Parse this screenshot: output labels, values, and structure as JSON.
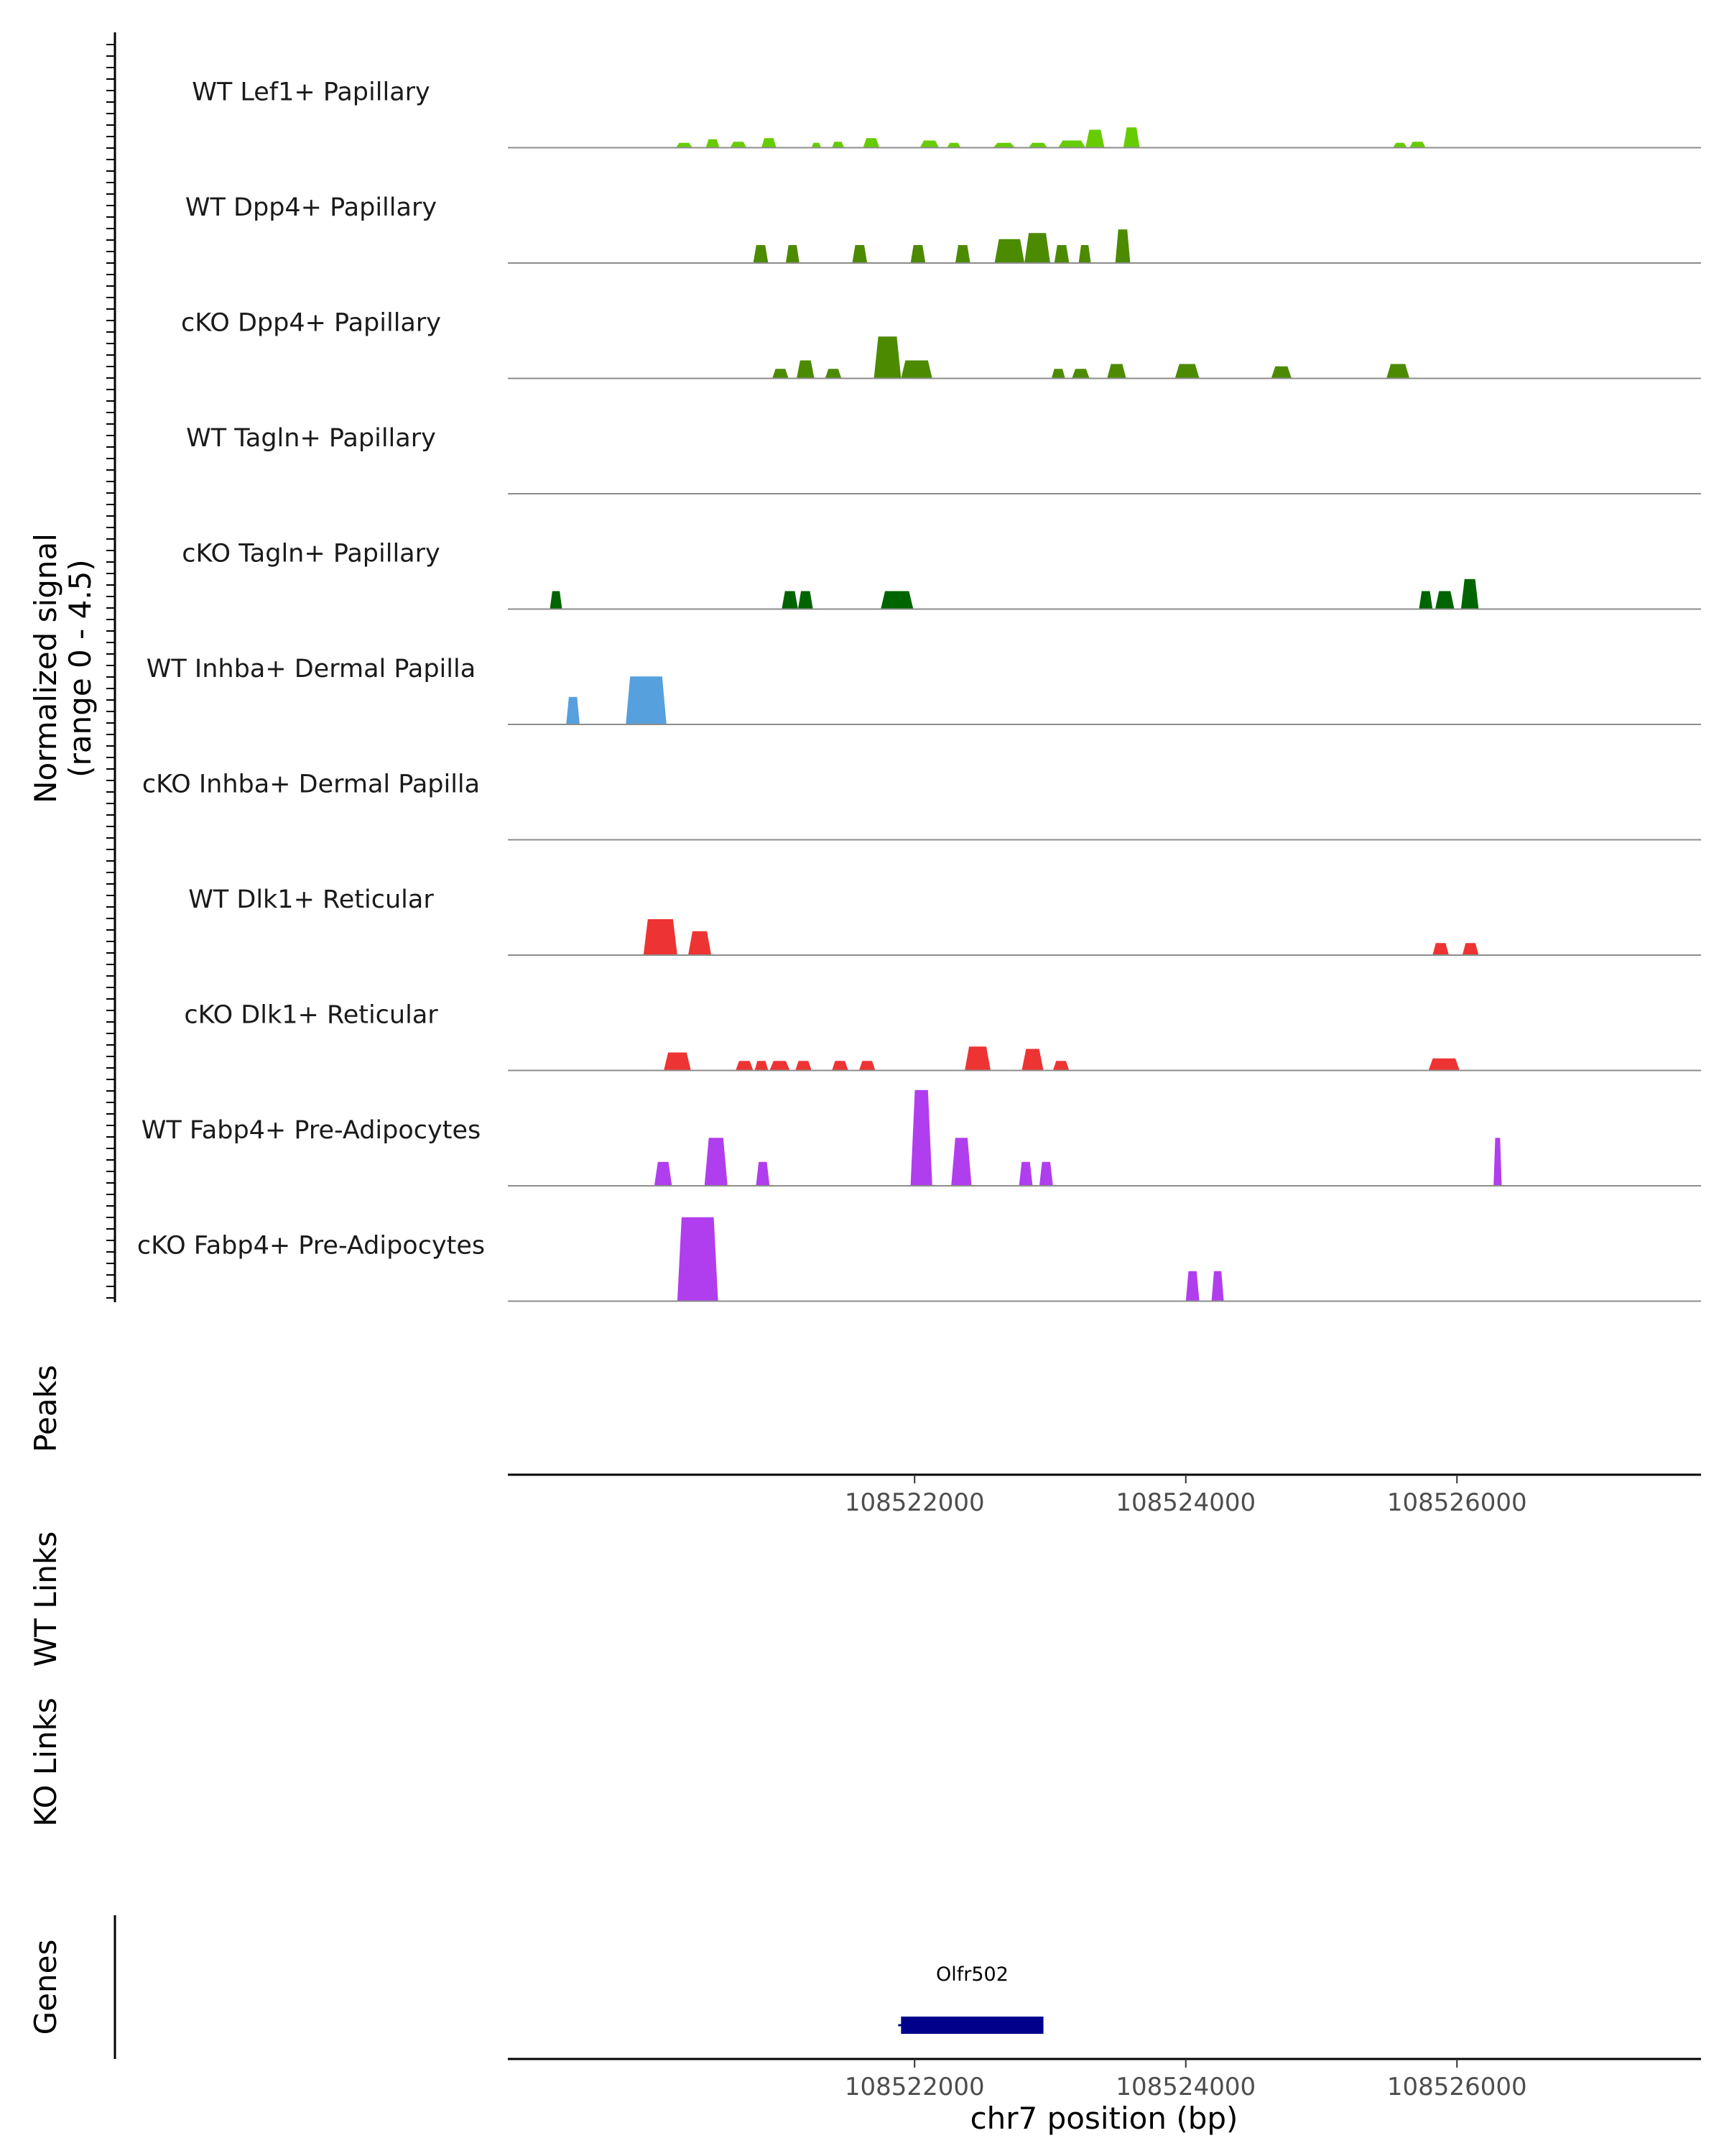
{
  "chart_data": {
    "type": "area",
    "title": "",
    "region": "chr7",
    "xlabel": "chr7 position (bp)",
    "xlim": [
      108519000,
      108527800
    ],
    "x_ticks": [
      108522000,
      108524000,
      108526000
    ],
    "x_tick_labels": [
      "108522000",
      "108524000",
      "108526000"
    ],
    "signal_panel": {
      "ylabel_line1": "Normalized signal",
      "ylabel_line2": "(range 0 - 4.5)",
      "ylim": [
        0,
        4.5
      ],
      "tracks": [
        {
          "label": "WT Lef1+ Papillary",
          "color": "#66CC00",
          "peaks": [
            [
              108520240,
              108520360,
              0.4
            ],
            [
              108520460,
              108520560,
              0.7
            ],
            [
              108520640,
              108520760,
              0.5
            ],
            [
              108520870,
              108520980,
              0.8
            ],
            [
              108521240,
              108521310,
              0.4
            ],
            [
              108521390,
              108521480,
              0.5
            ],
            [
              108521620,
              108521740,
              0.8
            ],
            [
              108522040,
              108522180,
              0.6
            ],
            [
              108522240,
              108522340,
              0.4
            ],
            [
              108522580,
              108522740,
              0.4
            ],
            [
              108522840,
              108522980,
              0.4
            ],
            [
              108523060,
              108523260,
              0.6
            ],
            [
              108523260,
              108523400,
              1.5
            ],
            [
              108523540,
              108523660,
              1.7
            ],
            [
              108525530,
              108525630,
              0.4
            ],
            [
              108525650,
              108525770,
              0.5
            ]
          ]
        },
        {
          "label": "WT Dpp4+ Papillary",
          "color": "#4C8B00",
          "peaks": [
            [
              108520810,
              108520920,
              1.5
            ],
            [
              108521050,
              108521150,
              1.5
            ],
            [
              108521540,
              108521650,
              1.5
            ],
            [
              108521970,
              108522080,
              1.5
            ],
            [
              108522300,
              108522410,
              1.5
            ],
            [
              108522590,
              108522810,
              2.0
            ],
            [
              108522810,
              108523000,
              2.5
            ],
            [
              108523030,
              108523140,
              1.5
            ],
            [
              108523210,
              108523300,
              1.5
            ],
            [
              108523480,
              108523590,
              2.8
            ]
          ]
        },
        {
          "label": "cKO Dpp4+ Papillary",
          "color": "#4C8B00",
          "peaks": [
            [
              108520950,
              108521070,
              0.8
            ],
            [
              108521130,
              108521260,
              1.5
            ],
            [
              108521340,
              108521460,
              0.8
            ],
            [
              108521700,
              108521900,
              3.5
            ],
            [
              108521900,
              108522130,
              1.5
            ],
            [
              108523010,
              108523110,
              0.8
            ],
            [
              108523160,
              108523290,
              0.8
            ],
            [
              108523420,
              108523560,
              1.2
            ],
            [
              108523920,
              108524100,
              1.2
            ],
            [
              108524630,
              108524780,
              1.0
            ],
            [
              108525480,
              108525650,
              1.2
            ]
          ]
        },
        {
          "label": "WT Tagln+ Papillary",
          "color": "#006400",
          "peaks": []
        },
        {
          "label": "cKO Tagln+ Papillary",
          "color": "#006400",
          "peaks": [
            [
              108519310,
              108519400,
              1.5
            ],
            [
              108521020,
              108521140,
              1.5
            ],
            [
              108521140,
              108521250,
              1.5
            ],
            [
              108521750,
              108521990,
              1.5
            ],
            [
              108525720,
              108525820,
              1.5
            ],
            [
              108525840,
              108525980,
              1.5
            ],
            [
              108526030,
              108526160,
              2.5
            ]
          ]
        },
        {
          "label": "WT Inhba+ Dermal Papilla",
          "color": "#56A0DE",
          "peaks": [
            [
              108519430,
              108519530,
              2.3
            ],
            [
              108519870,
              108520170,
              4.0
            ]
          ]
        },
        {
          "label": "cKO Inhba+ Dermal Papilla",
          "color": "#56A0DE",
          "peaks": []
        },
        {
          "label": "WT Dlk1+ Reticular",
          "color": "#EE3333",
          "peaks": [
            [
              108520000,
              108520250,
              3.0
            ],
            [
              108520330,
              108520500,
              2.0
            ],
            [
              108525820,
              108525940,
              1.0
            ],
            [
              108526040,
              108526160,
              1.0
            ]
          ]
        },
        {
          "label": "cKO Dlk1+ Reticular",
          "color": "#EE3333",
          "peaks": [
            [
              108520150,
              108520350,
              1.5
            ],
            [
              108520680,
              108520810,
              0.8
            ],
            [
              108520820,
              108520920,
              0.8
            ],
            [
              108520930,
              108521080,
              0.8
            ],
            [
              108521120,
              108521240,
              0.8
            ],
            [
              108521390,
              108521510,
              0.8
            ],
            [
              108521590,
              108521710,
              0.8
            ],
            [
              108522370,
              108522560,
              2.0
            ],
            [
              108522790,
              108522950,
              1.8
            ],
            [
              108523020,
              108523140,
              0.8
            ],
            [
              108525790,
              108526020,
              1.0
            ]
          ]
        },
        {
          "label": "WT Fabp4+ Pre-Adipocytes",
          "color": "#B03EEE",
          "peaks": [
            [
              108520080,
              108520210,
              2.0
            ],
            [
              108520450,
              108520620,
              4.0
            ],
            [
              108520830,
              108520930,
              2.0
            ],
            [
              108521970,
              108522130,
              8.0
            ],
            [
              108522270,
              108522420,
              4.0
            ],
            [
              108522770,
              108522870,
              2.0
            ],
            [
              108522920,
              108523020,
              2.0
            ],
            [
              108526270,
              108526330,
              4.0
            ]
          ]
        },
        {
          "label": "cKO Fabp4+ Pre-Adipocytes",
          "color": "#B03EEE",
          "peaks": [
            [
              108520250,
              108520550,
              7.0
            ],
            [
              108524000,
              108524100,
              2.5
            ],
            [
              108524190,
              108524280,
              2.5
            ]
          ]
        }
      ]
    },
    "peaks_track": {
      "label": "Peaks",
      "items": []
    },
    "link_tracks": [
      {
        "label": "WT Links",
        "items": []
      },
      {
        "label": "KO Links",
        "items": []
      }
    ],
    "genes_track": {
      "label": "Genes",
      "genes": [
        {
          "name": "Olfr502",
          "start": 108521900,
          "end": 108522950,
          "color": "#00008B"
        }
      ]
    }
  }
}
